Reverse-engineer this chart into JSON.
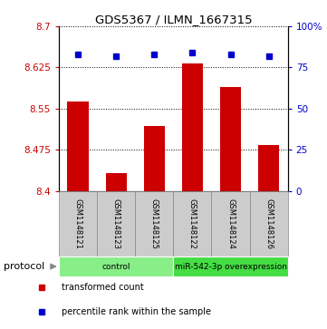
{
  "title": "GDS5367 / ILMN_1667315",
  "samples": [
    "GSM1148121",
    "GSM1148123",
    "GSM1148125",
    "GSM1148122",
    "GSM1148124",
    "GSM1148126"
  ],
  "bar_values": [
    8.563,
    8.432,
    8.518,
    8.632,
    8.59,
    8.483
  ],
  "percentile_values": [
    83,
    82,
    83,
    84,
    83,
    82
  ],
  "ymin": 8.4,
  "ymax": 8.7,
  "yticks": [
    8.4,
    8.475,
    8.55,
    8.625,
    8.7
  ],
  "ytick_labels": [
    "8.4",
    "8.475",
    "8.55",
    "8.625",
    "8.7"
  ],
  "right_yticks": [
    0,
    25,
    50,
    75,
    100
  ],
  "right_ytick_labels": [
    "0",
    "25",
    "50",
    "75",
    "100%"
  ],
  "bar_color": "#cc0000",
  "dot_color": "#0000cc",
  "groups": [
    {
      "label": "control",
      "start": 0,
      "end": 2,
      "color": "#88ee88"
    },
    {
      "label": "miR-542-3p overexpression",
      "start": 3,
      "end": 5,
      "color": "#44dd44"
    }
  ],
  "legend_items": [
    {
      "label": "transformed count",
      "color": "#cc0000"
    },
    {
      "label": "percentile rank within the sample",
      "color": "#0000cc"
    }
  ],
  "protocol_label": "protocol",
  "bar_width": 0.55,
  "background_color": "#ffffff",
  "sample_box_color": "#cccccc",
  "sample_box_edge": "#888888"
}
